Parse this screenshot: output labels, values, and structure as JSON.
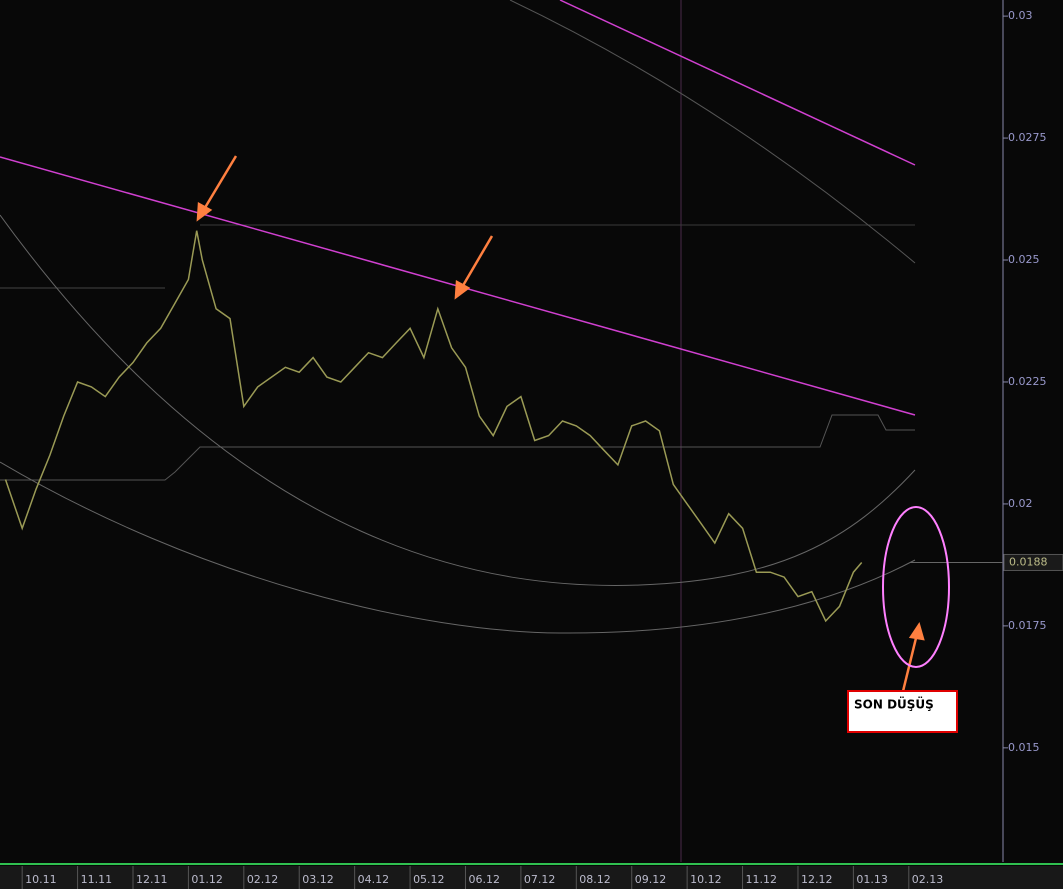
{
  "chart_data": {
    "type": "line",
    "color": "#9a9a55",
    "x": [
      -0.3,
      0,
      0.25,
      0.5,
      0.75,
      1,
      1.25,
      1.5,
      1.75,
      2,
      2.25,
      2.5,
      2.75,
      3,
      3.15,
      3.25,
      3.5,
      3.75,
      4,
      4.25,
      4.5,
      4.75,
      5,
      5.25,
      5.5,
      5.75,
      6,
      6.25,
      6.5,
      6.75,
      7,
      7.25,
      7.5,
      7.75,
      8,
      8.25,
      8.5,
      8.75,
      9,
      9.25,
      9.5,
      9.75,
      10,
      10.25,
      10.5,
      10.75,
      11,
      11.25,
      11.5,
      11.75,
      12,
      12.25,
      12.5,
      12.75,
      13,
      13.25,
      13.5,
      13.75,
      14,
      14.25,
      14.5,
      14.75,
      15,
      15.15
    ],
    "values": [
      0.0205,
      0.0195,
      0.0203,
      0.021,
      0.0218,
      0.0225,
      0.0224,
      0.0222,
      0.0226,
      0.0229,
      0.0233,
      0.0236,
      0.0241,
      0.0246,
      0.0256,
      0.025,
      0.024,
      0.0238,
      0.022,
      0.0224,
      0.0226,
      0.0228,
      0.0227,
      0.023,
      0.0226,
      0.0225,
      0.0228,
      0.0231,
      0.023,
      0.0233,
      0.0236,
      0.023,
      0.024,
      0.0232,
      0.0228,
      0.0218,
      0.0214,
      0.022,
      0.0222,
      0.0213,
      0.0214,
      0.0217,
      0.0216,
      0.0214,
      0.0211,
      0.0208,
      0.0216,
      0.0217,
      0.0215,
      0.0204,
      0.02,
      0.0196,
      0.0192,
      0.0198,
      0.0195,
      0.0186,
      0.0186,
      0.0185,
      0.0181,
      0.0182,
      0.0176,
      0.0179,
      0.0186,
      0.0188
    ],
    "xlim": [
      -0.4,
      17.7
    ],
    "ylim": [
      0.01266,
      0.03033
    ],
    "yticks": [
      0.03,
      0.0275,
      0.025,
      0.0225,
      0.02,
      0.0175,
      0.015
    ],
    "xticks": [
      {
        "value": 0,
        "label": "10.11"
      },
      {
        "value": 1,
        "label": "11.11"
      },
      {
        "value": 2,
        "label": "12.11"
      },
      {
        "value": 3,
        "label": "01.12"
      },
      {
        "value": 4,
        "label": "02.12"
      },
      {
        "value": 5,
        "label": "03.12"
      },
      {
        "value": 6,
        "label": "04.12"
      },
      {
        "value": 7,
        "label": "05.12"
      },
      {
        "value": 8,
        "label": "06.12"
      },
      {
        "value": 9,
        "label": "07.12"
      },
      {
        "value": 10,
        "label": "08.12"
      },
      {
        "value": 11,
        "label": "09.12"
      },
      {
        "value": 12,
        "label": "10.12"
      },
      {
        "value": 13,
        "label": "11.12"
      },
      {
        "value": 14,
        "label": "12.12"
      },
      {
        "value": 15,
        "label": "01.13"
      },
      {
        "value": 16,
        "label": "02.13"
      }
    ],
    "last_price": 0.0188,
    "annotations": [
      "SON DÜŞÜŞ"
    ]
  }
}
